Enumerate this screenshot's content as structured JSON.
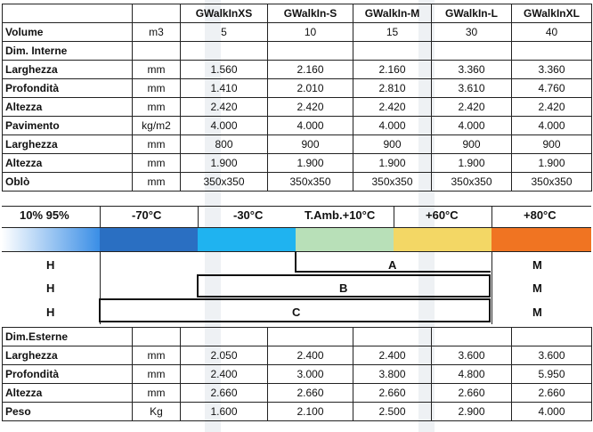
{
  "headers": [
    "GWalkInXS",
    "GWalkIn-S",
    "GWalkIn-M",
    "GWalkIn-L",
    "GWalkInXL"
  ],
  "rows_top": [
    {
      "label": "Volume",
      "unit": "m3",
      "values": [
        "5",
        "10",
        "15",
        "30",
        "40"
      ]
    },
    {
      "label": "Dim. Interne",
      "unit": "",
      "values": [
        "",
        "",
        "",
        "",
        ""
      ]
    },
    {
      "label": "Larghezza",
      "unit": "mm",
      "values": [
        "1.560",
        "2.160",
        "2.160",
        "3.360",
        "3.360"
      ]
    },
    {
      "label": "Profondità",
      "unit": "mm",
      "values": [
        "1.410",
        "2.010",
        "2.810",
        "3.610",
        "4.760"
      ]
    },
    {
      "label": "Altezza",
      "unit": "mm",
      "values": [
        "2.420",
        "2.420",
        "2.420",
        "2.420",
        "2.420"
      ]
    },
    {
      "label": "Pavimento",
      "unit": "kg/m2",
      "values": [
        "4.000",
        "4.000",
        "4.000",
        "4.000",
        "4.000"
      ]
    },
    {
      "label": "Larghezza",
      "unit": "mm",
      "values": [
        "800",
        "900",
        "900",
        "900",
        "900"
      ]
    },
    {
      "label": "Altezza",
      "unit": "mm",
      "values": [
        "1.900",
        "1.900",
        "1.900",
        "1.900",
        "1.900"
      ]
    },
    {
      "label": "Oblò",
      "unit": "mm",
      "values": [
        "350x350",
        "350x350",
        "350x350",
        "350x350",
        "350x350"
      ]
    }
  ],
  "humidity_label": "10% 95%",
  "temps": [
    "-70°C",
    "-30°C",
    "T.Amb.+10°C",
    "+60°C",
    "+80°C"
  ],
  "colors": {
    "gradient_start": "#ffffff",
    "gradient_end": "#3a8ee6",
    "dark_blue": "#2a6fc2",
    "light_blue": "#1fb3f0",
    "green": "#b8e0b8",
    "yellow": "#f3d765",
    "orange": "#f07422"
  },
  "ranges": [
    {
      "left": "H",
      "letter": "A",
      "right": "M"
    },
    {
      "left": "H",
      "letter": "B",
      "right": "M"
    },
    {
      "left": "H",
      "letter": "C",
      "right": "M"
    }
  ],
  "rows_bottom": [
    {
      "label": "Dim.Esterne",
      "unit": "",
      "values": [
        "",
        "",
        "",
        "",
        ""
      ]
    },
    {
      "label": "Larghezza",
      "unit": "mm",
      "values": [
        "2.050",
        "2.400",
        "2.400",
        "3.600",
        "3.600"
      ]
    },
    {
      "label": "Profondità",
      "unit": "mm",
      "values": [
        "2.400",
        "3.000",
        "3.800",
        "4.800",
        "5.950"
      ]
    },
    {
      "label": "Altezza",
      "unit": "mm",
      "values": [
        "2.660",
        "2.660",
        "2.660",
        "2.660",
        "2.660"
      ]
    },
    {
      "label": "Peso",
      "unit": "Kg",
      "values": [
        "1.600",
        "2.100",
        "2.500",
        "2.900",
        "4.000"
      ]
    }
  ]
}
